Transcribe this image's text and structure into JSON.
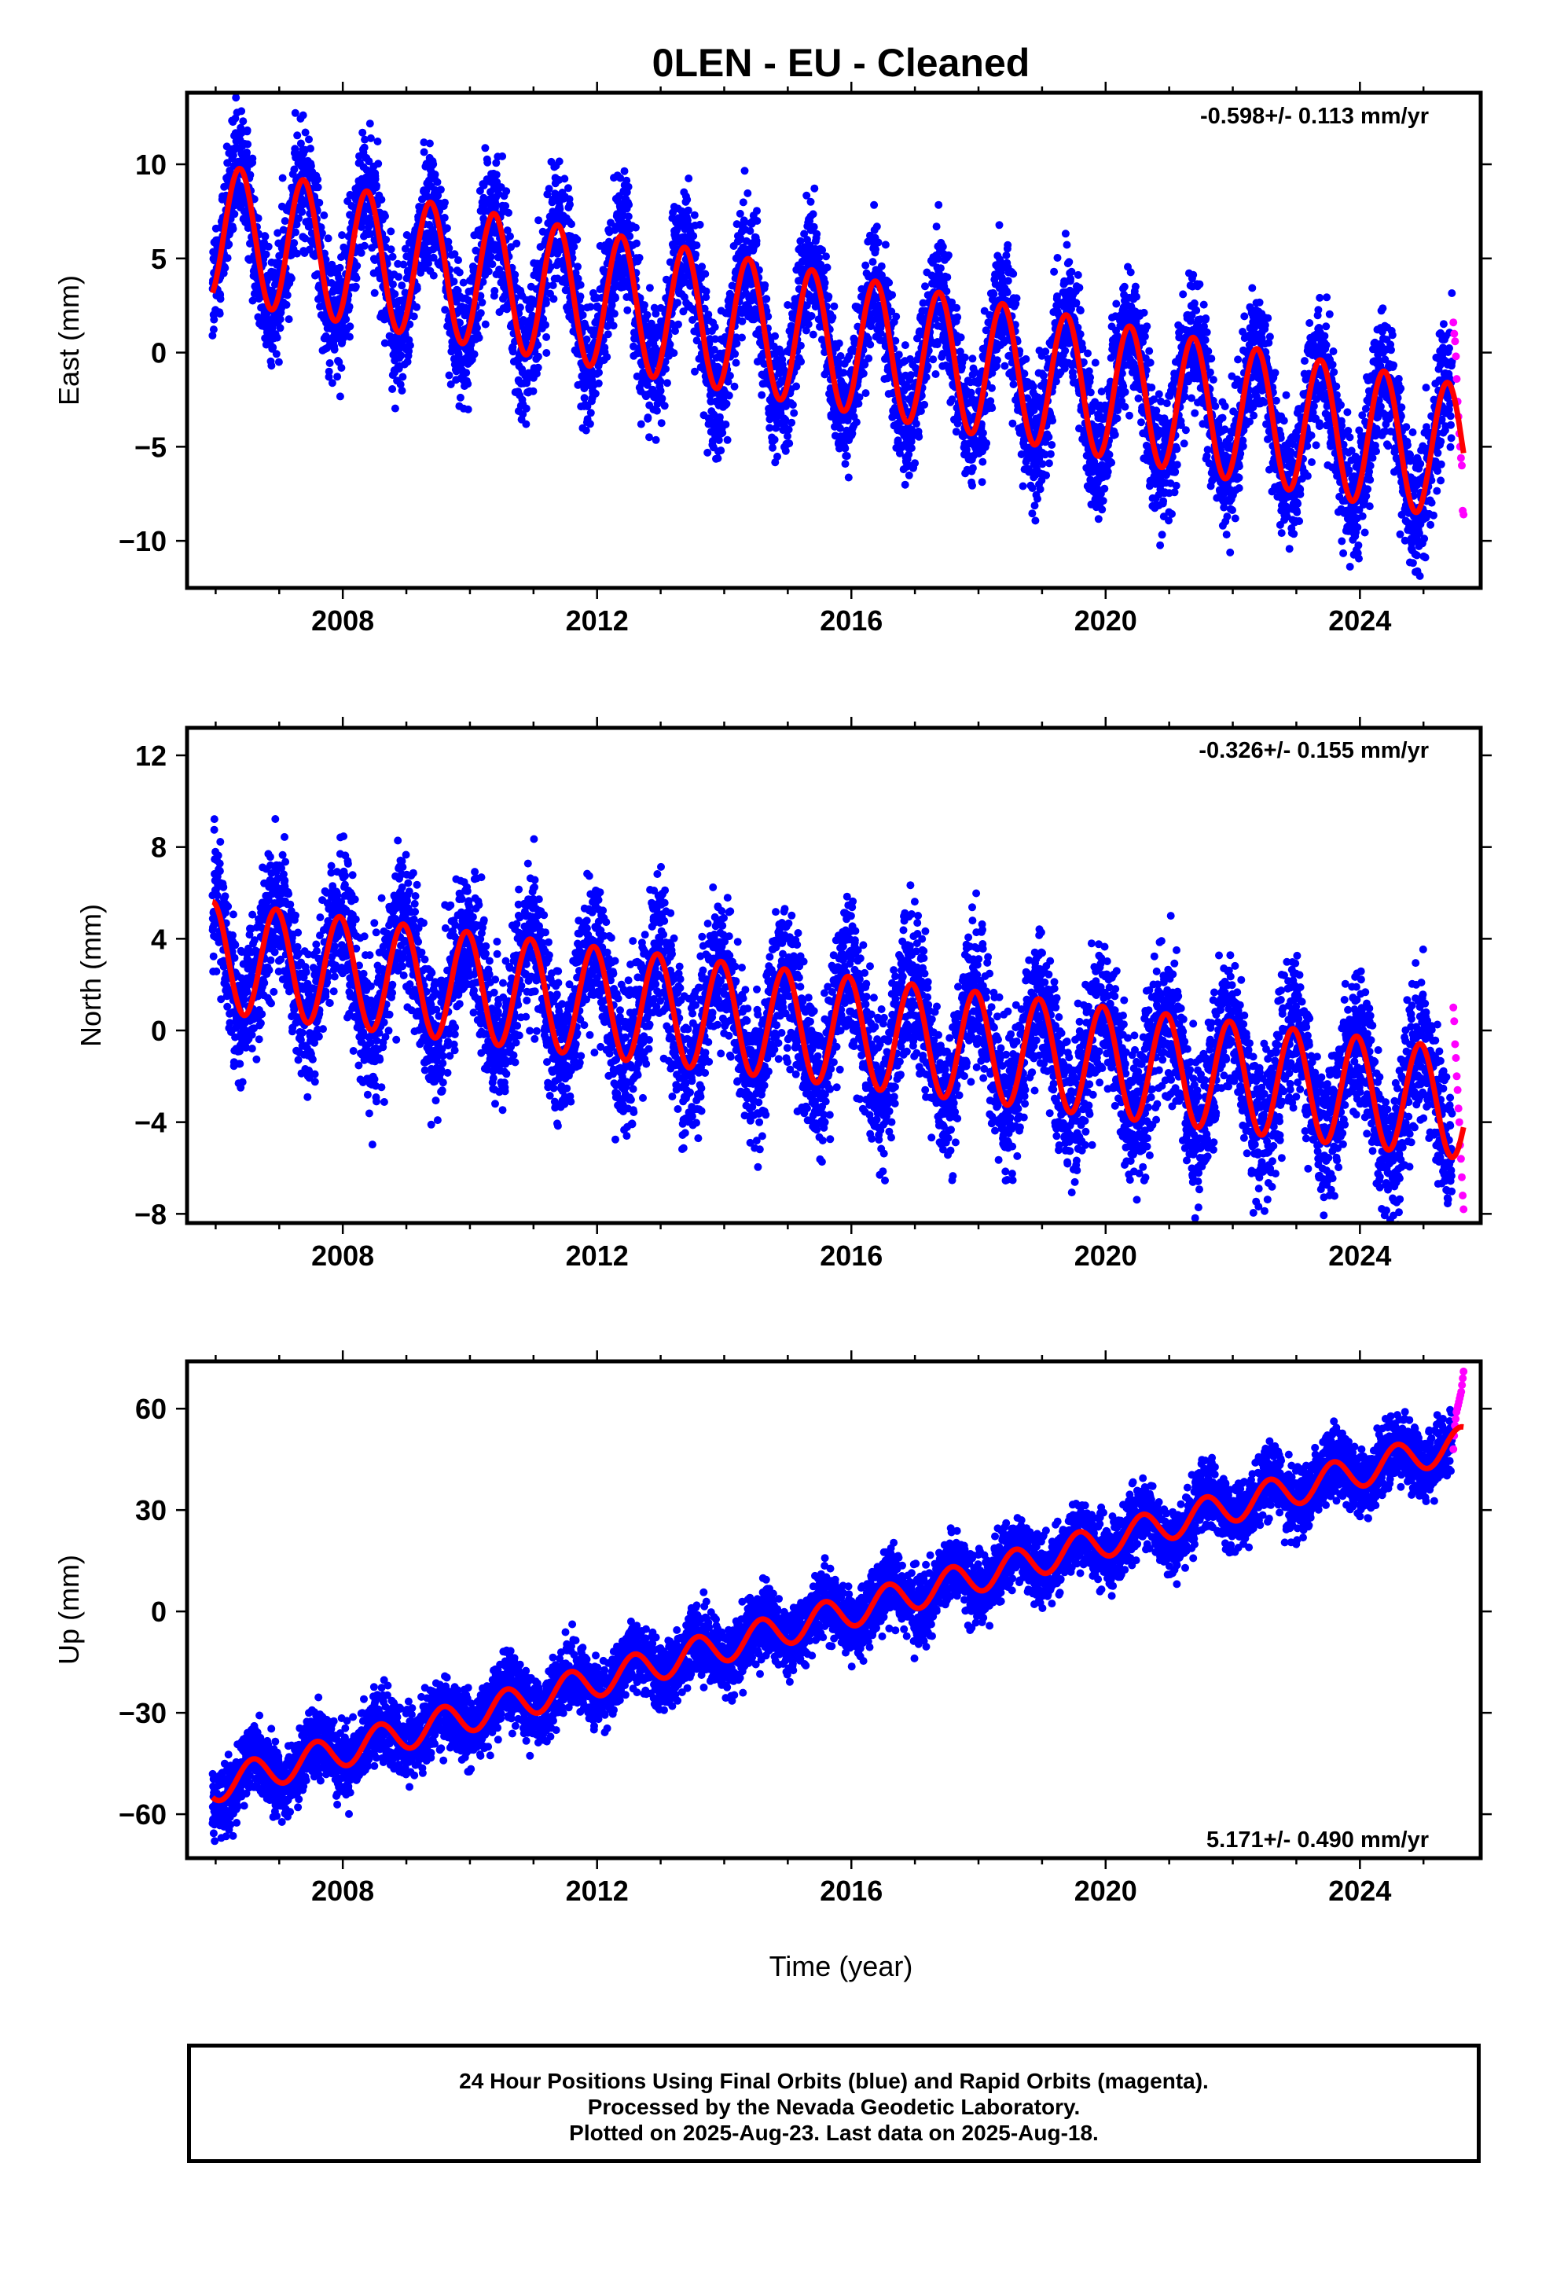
{
  "title": "0LEN  - EU - Cleaned",
  "xlabel": "Time (year)",
  "footer": [
    "24 Hour Positions Using Final Orbits (blue) and Rapid Orbits (magenta).",
    "Processed by the Nevada Geodetic Laboratory.",
    "Plotted on 2025-Aug-23. Last data on 2025-Aug-18."
  ],
  "colors": {
    "final": "#0000ff",
    "rapid": "#ff00ff",
    "model": "#ff0000",
    "frame": "#000000"
  },
  "chart_data": [
    {
      "type": "scatter",
      "ylabel": "East (mm)",
      "rate_text": "-0.598+/- 0.113 mm/yr",
      "xlim": [
        2005.55,
        2025.9
      ],
      "ylim": [
        -12.5,
        13.8
      ],
      "xticks": [
        2008,
        2012,
        2016,
        2020,
        2024
      ],
      "xtick_labels": [
        "2008",
        "2012",
        "2016",
        "2020",
        "2024"
      ],
      "yticks": [
        10,
        5,
        0,
        -5,
        -10
      ],
      "ytick_labels": [
        "10",
        "5",
        "0",
        "−5",
        "−10"
      ],
      "series": [
        {
          "name": "Final Orbits (blue)",
          "x_range": [
            2005.95,
            2025.45
          ],
          "trend": {
            "intercept_at_2006": 6.4,
            "slope_mm_per_yr": -0.598,
            "annual_amplitude": 3.6,
            "peak_phase_fraction": 0.38
          },
          "scatter_mm": 1.7
        },
        {
          "name": "Rapid Orbits (magenta)",
          "x_range": [
            2025.47,
            2025.63
          ],
          "y_values_mm": [
            1.6,
            1.0,
            0.6,
            -0.2,
            -1.4,
            -2.6,
            -3.4,
            -4.3,
            -5.0,
            -5.6,
            -6.0,
            -8.4,
            -8.6
          ]
        }
      ]
    },
    {
      "type": "scatter",
      "ylabel": "North (mm)",
      "rate_text": "-0.326+/- 0.155 mm/yr",
      "xlim": [
        2005.55,
        2025.9
      ],
      "ylim": [
        -8.4,
        13.2
      ],
      "xticks": [
        2008,
        2012,
        2016,
        2020,
        2024
      ],
      "xtick_labels": [
        "2008",
        "2012",
        "2016",
        "2020",
        "2024"
      ],
      "yticks": [
        12,
        8,
        4,
        0,
        -4,
        -8
      ],
      "ytick_labels": [
        "12",
        "8",
        "4",
        "0",
        "−4",
        "−8"
      ],
      "series": [
        {
          "name": "Final Orbits (blue)",
          "x_range": [
            2005.95,
            2025.45
          ],
          "trend": {
            "intercept_at_2006": 3.2,
            "slope_mm_per_yr": -0.326,
            "annual_amplitude": 2.4,
            "peak_phase_fraction": 0.95
          },
          "scatter_mm": 1.6
        },
        {
          "name": "Rapid Orbits (magenta)",
          "x_range": [
            2025.47,
            2025.63
          ],
          "y_values_mm": [
            1.0,
            0.4,
            -0.6,
            -1.2,
            -2.0,
            -2.6,
            -3.4,
            -4.0,
            -5.0,
            -5.6,
            -6.4,
            -7.2,
            -7.8
          ]
        }
      ]
    },
    {
      "type": "scatter",
      "ylabel": "Up (mm)",
      "rate_text": "5.171+/- 0.490 mm/yr",
      "xlim": [
        2005.55,
        2025.9
      ],
      "ylim": [
        -73,
        74
      ],
      "xticks": [
        2008,
        2012,
        2016,
        2020,
        2024
      ],
      "xtick_labels": [
        "2008",
        "2012",
        "2016",
        "2020",
        "2024"
      ],
      "yticks": [
        60,
        30,
        0,
        -30,
        -60
      ],
      "ytick_labels": [
        "60",
        "30",
        "0",
        "−30",
        "−60"
      ],
      "series": [
        {
          "name": "Final Orbits (blue)",
          "x_range": [
            2005.95,
            2025.45
          ],
          "trend": {
            "intercept_at_2006": -51.5,
            "slope_mm_per_yr": 5.171,
            "annual_amplitude": 4.8,
            "peak_phase_fraction": 0.58
          },
          "scatter_mm": 5.0
        },
        {
          "name": "Rapid Orbits (magenta)",
          "x_range": [
            2025.47,
            2025.63
          ],
          "y_values_mm": [
            48,
            52,
            55,
            57,
            59,
            60,
            61,
            62,
            63,
            64,
            65,
            67,
            69,
            71
          ]
        }
      ]
    }
  ]
}
